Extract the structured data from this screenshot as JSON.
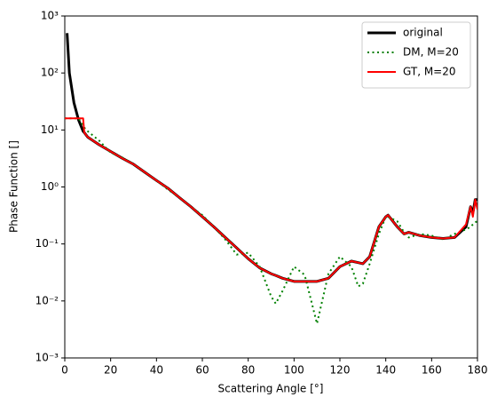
{
  "chart_data": {
    "type": "line",
    "xlabel": "Scattering Angle [°]",
    "ylabel": "Phase Function []",
    "xlim": [
      0,
      180
    ],
    "xticks": [
      0,
      20,
      40,
      60,
      80,
      100,
      120,
      140,
      160,
      180
    ],
    "ylim": [
      0.001,
      1000
    ],
    "yticks": [
      {
        "value": 0.001,
        "label": "10⁻³"
      },
      {
        "value": 0.01,
        "label": "10⁻²"
      },
      {
        "value": 0.1,
        "label": "10⁻¹"
      },
      {
        "value": 1,
        "label": "10⁰"
      },
      {
        "value": 10,
        "label": "10¹"
      },
      {
        "value": 100,
        "label": "10²"
      },
      {
        "value": 1000,
        "label": "10³"
      }
    ],
    "yscale": "log",
    "legend": "upper right",
    "x": [
      0,
      1,
      2,
      4,
      6,
      8,
      8.5,
      10,
      15,
      20,
      25,
      30,
      35,
      40,
      45,
      50,
      55,
      60,
      65,
      70,
      75,
      80,
      85,
      90,
      92,
      95,
      100,
      104,
      105,
      110,
      115,
      120,
      125,
      128,
      130,
      133,
      137,
      140,
      141,
      145,
      148,
      150,
      155,
      160,
      165,
      170,
      175,
      177,
      178,
      179,
      180
    ],
    "series": [
      {
        "name": "original",
        "color": "#000000",
        "width": 3,
        "dash": "solid",
        "values": [
          null,
          500,
          100,
          30,
          15,
          9.5,
          9,
          7.5,
          5.5,
          4.2,
          3.2,
          2.5,
          1.8,
          1.3,
          0.95,
          0.65,
          0.45,
          0.3,
          0.2,
          0.13,
          0.085,
          0.055,
          0.038,
          0.03,
          0.028,
          0.025,
          0.022,
          0.022,
          0.022,
          0.022,
          0.025,
          0.04,
          0.05,
          0.047,
          0.045,
          0.06,
          0.2,
          0.3,
          0.32,
          0.2,
          0.15,
          0.16,
          0.14,
          0.13,
          0.125,
          0.13,
          0.2,
          0.45,
          0.35,
          0.6,
          0.6
        ]
      },
      {
        "name": "DM, M=20",
        "color": "#008000",
        "width": 2,
        "dash": "dotted",
        "values": [
          16,
          16,
          16,
          16,
          16,
          12,
          11,
          9.5,
          6.5,
          4,
          3.3,
          2.5,
          1.8,
          1.3,
          0.9,
          0.65,
          0.45,
          0.32,
          0.2,
          0.12,
          0.065,
          0.07,
          0.04,
          0.012,
          0.009,
          0.015,
          0.04,
          0.03,
          0.025,
          0.004,
          0.03,
          0.06,
          0.04,
          0.018,
          0.02,
          0.045,
          0.15,
          0.3,
          0.3,
          0.25,
          0.16,
          0.13,
          0.15,
          0.14,
          0.12,
          0.15,
          0.18,
          0.2,
          0.22,
          0.24,
          0.25
        ]
      },
      {
        "name": "GT, M=20",
        "color": "#ff0000",
        "width": 2,
        "dash": "solid",
        "values": [
          16,
          16,
          16,
          16,
          16,
          16,
          9,
          7.5,
          5.5,
          4.2,
          3.2,
          2.5,
          1.8,
          1.3,
          0.95,
          0.65,
          0.45,
          0.3,
          0.2,
          0.13,
          0.085,
          0.055,
          0.038,
          0.03,
          0.028,
          0.025,
          0.022,
          0.022,
          0.022,
          0.022,
          0.025,
          0.04,
          0.05,
          0.047,
          0.045,
          0.06,
          0.2,
          0.3,
          0.32,
          0.2,
          0.15,
          0.16,
          0.14,
          0.13,
          0.125,
          0.13,
          0.22,
          0.45,
          0.3,
          0.6,
          0.4
        ]
      }
    ]
  }
}
